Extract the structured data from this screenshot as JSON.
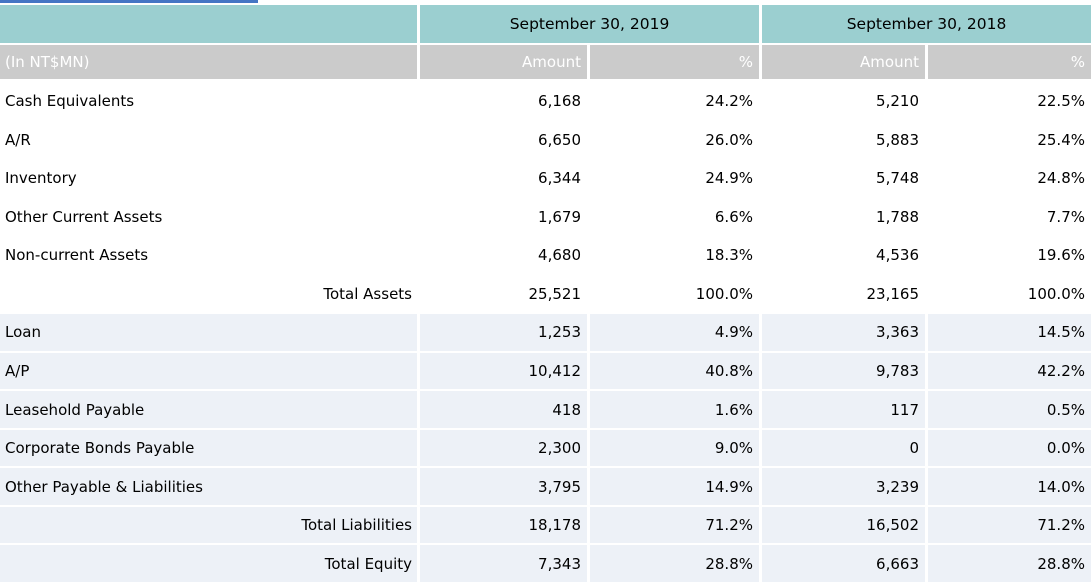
{
  "chart_data": {
    "type": "table",
    "unit_label": "(In NT$MN)",
    "column_groups": [
      "September 30, 2019",
      "September 30, 2018"
    ],
    "sub_headers": [
      "Amount",
      "%",
      "Amount",
      "%"
    ],
    "rows": [
      {
        "label": "Cash Equivalents",
        "label_align": "left",
        "band": "white",
        "section": "assets",
        "values": [
          "6,168",
          "24.2%",
          "5,210",
          "22.5%"
        ]
      },
      {
        "label": "A/R",
        "label_align": "left",
        "band": "white",
        "section": "assets",
        "values": [
          "6,650",
          "26.0%",
          "5,883",
          "25.4%"
        ]
      },
      {
        "label": "Inventory",
        "label_align": "left",
        "band": "white",
        "section": "assets",
        "values": [
          "6,344",
          "24.9%",
          "5,748",
          "24.8%"
        ]
      },
      {
        "label": "Other Current Assets",
        "label_align": "left",
        "band": "white",
        "section": "assets",
        "values": [
          "1,679",
          "6.6%",
          "1,788",
          "7.7%"
        ]
      },
      {
        "label": "Non-current Assets",
        "label_align": "left",
        "band": "white",
        "section": "assets",
        "values": [
          "4,680",
          "18.3%",
          "4,536",
          "19.6%"
        ]
      },
      {
        "label": "Total Assets",
        "label_align": "right",
        "band": "white",
        "section": "assets",
        "values": [
          "25,521",
          "100.0%",
          "23,165",
          "100.0%"
        ]
      },
      {
        "label": "Loan",
        "label_align": "left",
        "band": "blue",
        "section": "liabilities",
        "values": [
          "1,253",
          "4.9%",
          "3,363",
          "14.5%"
        ]
      },
      {
        "label": "A/P",
        "label_align": "left",
        "band": "blue",
        "section": "liabilities",
        "values": [
          "10,412",
          "40.8%",
          "9,783",
          "42.2%"
        ]
      },
      {
        "label": "Leasehold Payable",
        "label_align": "left",
        "band": "blue",
        "section": "liabilities",
        "values": [
          "418",
          "1.6%",
          "117",
          "0.5%"
        ]
      },
      {
        "label": "Corporate Bonds Payable",
        "label_align": "left",
        "band": "blue",
        "section": "liabilities",
        "values": [
          "2,300",
          "9.0%",
          "0",
          "0.0%"
        ]
      },
      {
        "label": "Other Payable & Liabilities",
        "label_align": "left",
        "band": "blue",
        "section": "liabilities",
        "values": [
          "3,795",
          "14.9%",
          "3,239",
          "14.0%"
        ]
      },
      {
        "label": "Total Liabilities",
        "label_align": "right",
        "band": "blue",
        "section": "liabilities",
        "values": [
          "18,178",
          "71.2%",
          "16,502",
          "71.2%"
        ]
      },
      {
        "label": "Total Equity",
        "label_align": "right",
        "band": "blue",
        "section": "equity",
        "values": [
          "7,343",
          "28.8%",
          "6,663",
          "28.8%"
        ]
      }
    ]
  },
  "colors": {
    "teal_header": "#9bcfd0",
    "gray_subheader": "#cbcbcb",
    "band_light_blue": "#edf1f7",
    "band_white": "#ffffff",
    "accent_bar_blue": "#4575c4",
    "text_dark": "#000000",
    "text_light": "#ffffff"
  }
}
